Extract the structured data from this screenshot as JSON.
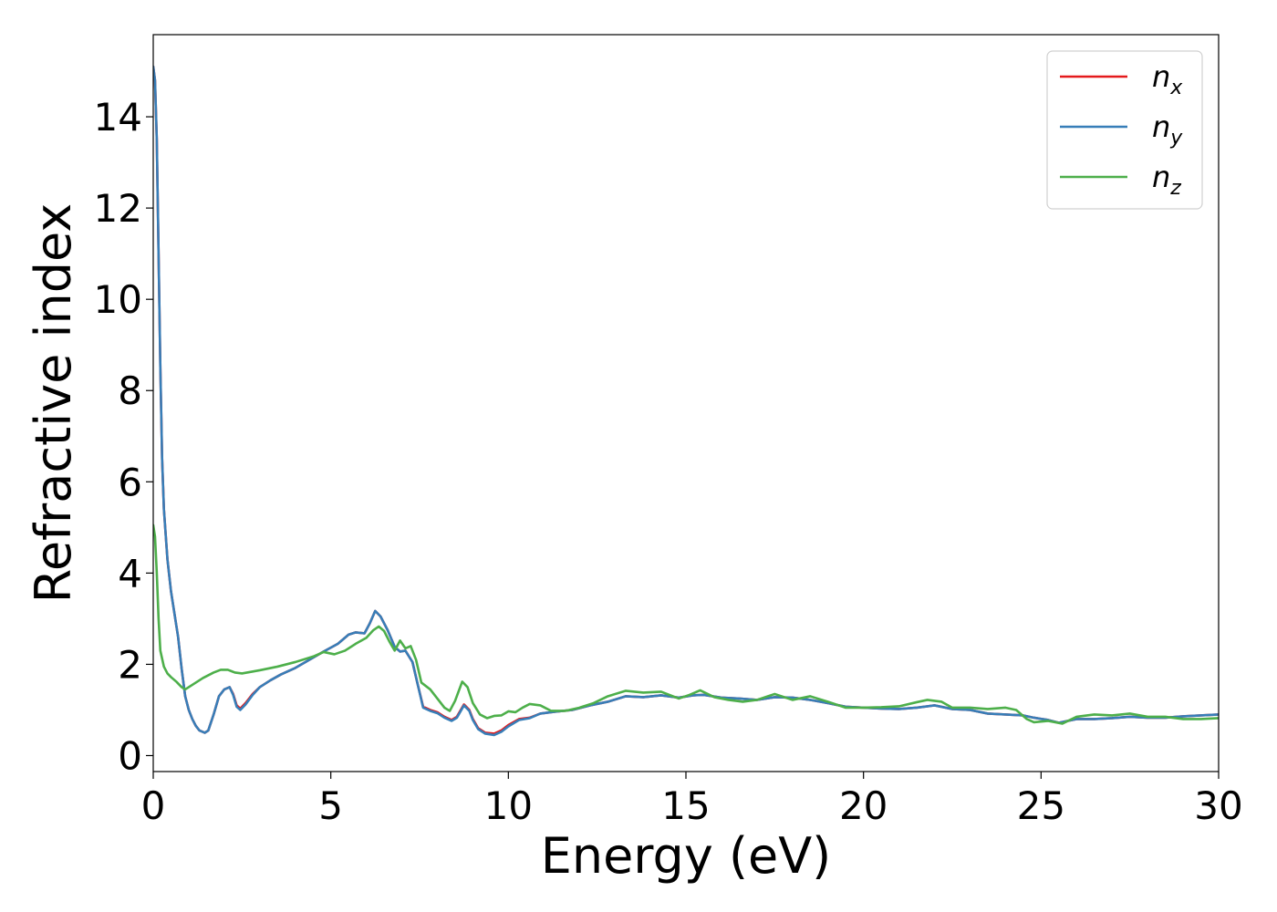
{
  "chart_data": {
    "type": "line",
    "title": "",
    "xlabel": "Energy (eV)",
    "ylabel": "Refractive index",
    "xlim": [
      0,
      30
    ],
    "ylim": [
      -0.35,
      15.8
    ],
    "xticks": [
      0,
      5,
      10,
      15,
      20,
      25,
      30
    ],
    "yticks": [
      0,
      2,
      4,
      6,
      8,
      10,
      12,
      14
    ],
    "grid": false,
    "legend_position": "top-right",
    "series": [
      {
        "name": "n_x",
        "label_base": "n",
        "label_sub": "x",
        "color": "#e41a1c",
        "points": [
          [
            0,
            15.1
          ],
          [
            0.05,
            14.8
          ],
          [
            0.1,
            13.5
          ],
          [
            0.15,
            11.0
          ],
          [
            0.2,
            8.5
          ],
          [
            0.25,
            6.5
          ],
          [
            0.3,
            5.4
          ],
          [
            0.4,
            4.3
          ],
          [
            0.5,
            3.6
          ],
          [
            0.6,
            3.1
          ],
          [
            0.7,
            2.6
          ],
          [
            0.8,
            1.9
          ],
          [
            0.9,
            1.3
          ],
          [
            1.0,
            1.0
          ],
          [
            1.1,
            0.8
          ],
          [
            1.2,
            0.65
          ],
          [
            1.3,
            0.55
          ],
          [
            1.45,
            0.5
          ],
          [
            1.55,
            0.55
          ],
          [
            1.7,
            0.9
          ],
          [
            1.85,
            1.3
          ],
          [
            2.0,
            1.45
          ],
          [
            2.15,
            1.5
          ],
          [
            2.25,
            1.35
          ],
          [
            2.35,
            1.1
          ],
          [
            2.45,
            1.03
          ],
          [
            2.6,
            1.15
          ],
          [
            2.8,
            1.35
          ],
          [
            3.0,
            1.5
          ],
          [
            3.3,
            1.65
          ],
          [
            3.6,
            1.78
          ],
          [
            4.0,
            1.92
          ],
          [
            4.4,
            2.1
          ],
          [
            4.8,
            2.28
          ],
          [
            5.2,
            2.45
          ],
          [
            5.5,
            2.65
          ],
          [
            5.7,
            2.7
          ],
          [
            5.95,
            2.68
          ],
          [
            6.1,
            2.9
          ],
          [
            6.25,
            3.17
          ],
          [
            6.4,
            3.05
          ],
          [
            6.6,
            2.75
          ],
          [
            6.8,
            2.38
          ],
          [
            6.95,
            2.28
          ],
          [
            7.1,
            2.3
          ],
          [
            7.3,
            2.05
          ],
          [
            7.45,
            1.55
          ],
          [
            7.6,
            1.07
          ],
          [
            7.8,
            1.0
          ],
          [
            8.0,
            0.95
          ],
          [
            8.2,
            0.85
          ],
          [
            8.4,
            0.78
          ],
          [
            8.55,
            0.85
          ],
          [
            8.75,
            1.12
          ],
          [
            8.9,
            1.0
          ],
          [
            9.0,
            0.8
          ],
          [
            9.15,
            0.6
          ],
          [
            9.35,
            0.5
          ],
          [
            9.6,
            0.48
          ],
          [
            9.8,
            0.55
          ],
          [
            10.0,
            0.67
          ],
          [
            10.3,
            0.8
          ],
          [
            10.6,
            0.83
          ],
          [
            10.9,
            0.92
          ],
          [
            11.3,
            0.96
          ],
          [
            11.8,
            1.0
          ],
          [
            12.3,
            1.1
          ],
          [
            12.8,
            1.18
          ],
          [
            13.3,
            1.3
          ],
          [
            13.8,
            1.28
          ],
          [
            14.3,
            1.32
          ],
          [
            14.8,
            1.27
          ],
          [
            15.2,
            1.32
          ],
          [
            15.5,
            1.33
          ],
          [
            16.0,
            1.27
          ],
          [
            16.5,
            1.25
          ],
          [
            17.0,
            1.22
          ],
          [
            17.5,
            1.28
          ],
          [
            18.0,
            1.27
          ],
          [
            18.5,
            1.22
          ],
          [
            19.0,
            1.15
          ],
          [
            19.5,
            1.07
          ],
          [
            20.0,
            1.05
          ],
          [
            20.5,
            1.03
          ],
          [
            21.0,
            1.02
          ],
          [
            21.5,
            1.05
          ],
          [
            22.0,
            1.1
          ],
          [
            22.5,
            1.02
          ],
          [
            23.0,
            1.0
          ],
          [
            23.5,
            0.92
          ],
          [
            24.0,
            0.9
          ],
          [
            24.5,
            0.88
          ],
          [
            24.8,
            0.83
          ],
          [
            25.2,
            0.78
          ],
          [
            25.5,
            0.72
          ],
          [
            26.0,
            0.8
          ],
          [
            26.5,
            0.8
          ],
          [
            27.0,
            0.82
          ],
          [
            27.5,
            0.85
          ],
          [
            28.0,
            0.83
          ],
          [
            28.5,
            0.83
          ],
          [
            29.0,
            0.86
          ],
          [
            29.5,
            0.88
          ],
          [
            30.0,
            0.9
          ]
        ]
      },
      {
        "name": "n_y",
        "label_base": "n",
        "label_sub": "y",
        "color": "#377eb8",
        "points": [
          [
            0,
            15.1
          ],
          [
            0.05,
            14.8
          ],
          [
            0.1,
            13.5
          ],
          [
            0.15,
            11.0
          ],
          [
            0.2,
            8.5
          ],
          [
            0.25,
            6.5
          ],
          [
            0.3,
            5.4
          ],
          [
            0.4,
            4.3
          ],
          [
            0.5,
            3.6
          ],
          [
            0.6,
            3.1
          ],
          [
            0.7,
            2.6
          ],
          [
            0.8,
            1.9
          ],
          [
            0.9,
            1.3
          ],
          [
            1.0,
            1.0
          ],
          [
            1.1,
            0.8
          ],
          [
            1.2,
            0.65
          ],
          [
            1.3,
            0.55
          ],
          [
            1.45,
            0.5
          ],
          [
            1.55,
            0.55
          ],
          [
            1.7,
            0.9
          ],
          [
            1.85,
            1.3
          ],
          [
            2.0,
            1.45
          ],
          [
            2.15,
            1.5
          ],
          [
            2.25,
            1.33
          ],
          [
            2.35,
            1.07
          ],
          [
            2.45,
            1.0
          ],
          [
            2.6,
            1.12
          ],
          [
            2.8,
            1.33
          ],
          [
            3.0,
            1.5
          ],
          [
            3.3,
            1.65
          ],
          [
            3.6,
            1.78
          ],
          [
            4.0,
            1.92
          ],
          [
            4.4,
            2.1
          ],
          [
            4.8,
            2.28
          ],
          [
            5.2,
            2.45
          ],
          [
            5.5,
            2.65
          ],
          [
            5.7,
            2.7
          ],
          [
            5.95,
            2.68
          ],
          [
            6.1,
            2.9
          ],
          [
            6.25,
            3.17
          ],
          [
            6.4,
            3.05
          ],
          [
            6.6,
            2.75
          ],
          [
            6.8,
            2.38
          ],
          [
            6.95,
            2.28
          ],
          [
            7.1,
            2.3
          ],
          [
            7.3,
            2.05
          ],
          [
            7.45,
            1.55
          ],
          [
            7.6,
            1.05
          ],
          [
            7.8,
            0.98
          ],
          [
            8.0,
            0.93
          ],
          [
            8.2,
            0.83
          ],
          [
            8.4,
            0.76
          ],
          [
            8.55,
            0.83
          ],
          [
            8.75,
            1.1
          ],
          [
            8.9,
            0.98
          ],
          [
            9.0,
            0.78
          ],
          [
            9.15,
            0.58
          ],
          [
            9.35,
            0.48
          ],
          [
            9.6,
            0.45
          ],
          [
            9.8,
            0.52
          ],
          [
            10.0,
            0.64
          ],
          [
            10.3,
            0.78
          ],
          [
            10.6,
            0.82
          ],
          [
            10.9,
            0.92
          ],
          [
            11.3,
            0.96
          ],
          [
            11.8,
            1.0
          ],
          [
            12.3,
            1.1
          ],
          [
            12.8,
            1.18
          ],
          [
            13.3,
            1.3
          ],
          [
            13.8,
            1.28
          ],
          [
            14.3,
            1.32
          ],
          [
            14.8,
            1.27
          ],
          [
            15.2,
            1.32
          ],
          [
            15.5,
            1.33
          ],
          [
            16.0,
            1.27
          ],
          [
            16.5,
            1.25
          ],
          [
            17.0,
            1.22
          ],
          [
            17.5,
            1.28
          ],
          [
            18.0,
            1.27
          ],
          [
            18.5,
            1.22
          ],
          [
            19.0,
            1.15
          ],
          [
            19.5,
            1.07
          ],
          [
            20.0,
            1.05
          ],
          [
            20.5,
            1.03
          ],
          [
            21.0,
            1.02
          ],
          [
            21.5,
            1.05
          ],
          [
            22.0,
            1.1
          ],
          [
            22.5,
            1.02
          ],
          [
            23.0,
            1.0
          ],
          [
            23.5,
            0.92
          ],
          [
            24.0,
            0.9
          ],
          [
            24.5,
            0.88
          ],
          [
            24.8,
            0.83
          ],
          [
            25.2,
            0.78
          ],
          [
            25.5,
            0.72
          ],
          [
            26.0,
            0.8
          ],
          [
            26.5,
            0.8
          ],
          [
            27.0,
            0.82
          ],
          [
            27.5,
            0.85
          ],
          [
            28.0,
            0.83
          ],
          [
            28.5,
            0.83
          ],
          [
            29.0,
            0.86
          ],
          [
            29.5,
            0.88
          ],
          [
            30.0,
            0.9
          ]
        ]
      },
      {
        "name": "n_z",
        "label_base": "n",
        "label_sub": "z",
        "color": "#4daf4a",
        "points": [
          [
            0,
            5.05
          ],
          [
            0.05,
            4.8
          ],
          [
            0.1,
            4.0
          ],
          [
            0.15,
            3.0
          ],
          [
            0.2,
            2.3
          ],
          [
            0.3,
            1.95
          ],
          [
            0.4,
            1.8
          ],
          [
            0.5,
            1.72
          ],
          [
            0.65,
            1.62
          ],
          [
            0.8,
            1.5
          ],
          [
            0.9,
            1.45
          ],
          [
            1.1,
            1.55
          ],
          [
            1.4,
            1.7
          ],
          [
            1.7,
            1.82
          ],
          [
            1.9,
            1.88
          ],
          [
            2.1,
            1.88
          ],
          [
            2.3,
            1.82
          ],
          [
            2.5,
            1.8
          ],
          [
            3.0,
            1.87
          ],
          [
            3.5,
            1.95
          ],
          [
            4.0,
            2.05
          ],
          [
            4.5,
            2.17
          ],
          [
            4.8,
            2.27
          ],
          [
            5.1,
            2.22
          ],
          [
            5.4,
            2.3
          ],
          [
            5.7,
            2.45
          ],
          [
            6.0,
            2.58
          ],
          [
            6.2,
            2.75
          ],
          [
            6.35,
            2.83
          ],
          [
            6.5,
            2.73
          ],
          [
            6.65,
            2.5
          ],
          [
            6.8,
            2.3
          ],
          [
            6.95,
            2.52
          ],
          [
            7.1,
            2.35
          ],
          [
            7.25,
            2.4
          ],
          [
            7.4,
            2.1
          ],
          [
            7.55,
            1.6
          ],
          [
            7.8,
            1.45
          ],
          [
            8.0,
            1.25
          ],
          [
            8.2,
            1.05
          ],
          [
            8.35,
            0.98
          ],
          [
            8.5,
            1.2
          ],
          [
            8.7,
            1.62
          ],
          [
            8.85,
            1.5
          ],
          [
            9.0,
            1.15
          ],
          [
            9.2,
            0.9
          ],
          [
            9.4,
            0.82
          ],
          [
            9.6,
            0.87
          ],
          [
            9.8,
            0.88
          ],
          [
            10.0,
            0.97
          ],
          [
            10.2,
            0.95
          ],
          [
            10.4,
            1.05
          ],
          [
            10.6,
            1.13
          ],
          [
            10.9,
            1.1
          ],
          [
            11.2,
            0.98
          ],
          [
            11.6,
            0.98
          ],
          [
            12.0,
            1.05
          ],
          [
            12.4,
            1.15
          ],
          [
            12.8,
            1.3
          ],
          [
            13.3,
            1.42
          ],
          [
            13.8,
            1.38
          ],
          [
            14.3,
            1.4
          ],
          [
            14.8,
            1.25
          ],
          [
            15.1,
            1.33
          ],
          [
            15.4,
            1.43
          ],
          [
            15.8,
            1.28
          ],
          [
            16.2,
            1.22
          ],
          [
            16.6,
            1.18
          ],
          [
            17.0,
            1.22
          ],
          [
            17.5,
            1.35
          ],
          [
            18.0,
            1.22
          ],
          [
            18.5,
            1.3
          ],
          [
            19.0,
            1.18
          ],
          [
            19.5,
            1.05
          ],
          [
            20.0,
            1.05
          ],
          [
            20.5,
            1.06
          ],
          [
            21.0,
            1.08
          ],
          [
            21.5,
            1.17
          ],
          [
            21.8,
            1.22
          ],
          [
            22.2,
            1.18
          ],
          [
            22.5,
            1.05
          ],
          [
            23.0,
            1.05
          ],
          [
            23.5,
            1.02
          ],
          [
            24.0,
            1.05
          ],
          [
            24.3,
            1.0
          ],
          [
            24.6,
            0.8
          ],
          [
            24.8,
            0.73
          ],
          [
            25.2,
            0.76
          ],
          [
            25.6,
            0.7
          ],
          [
            26.0,
            0.85
          ],
          [
            26.5,
            0.9
          ],
          [
            27.0,
            0.88
          ],
          [
            27.5,
            0.92
          ],
          [
            28.0,
            0.85
          ],
          [
            28.5,
            0.85
          ],
          [
            29.0,
            0.8
          ],
          [
            29.5,
            0.8
          ],
          [
            30.0,
            0.82
          ]
        ]
      }
    ]
  }
}
